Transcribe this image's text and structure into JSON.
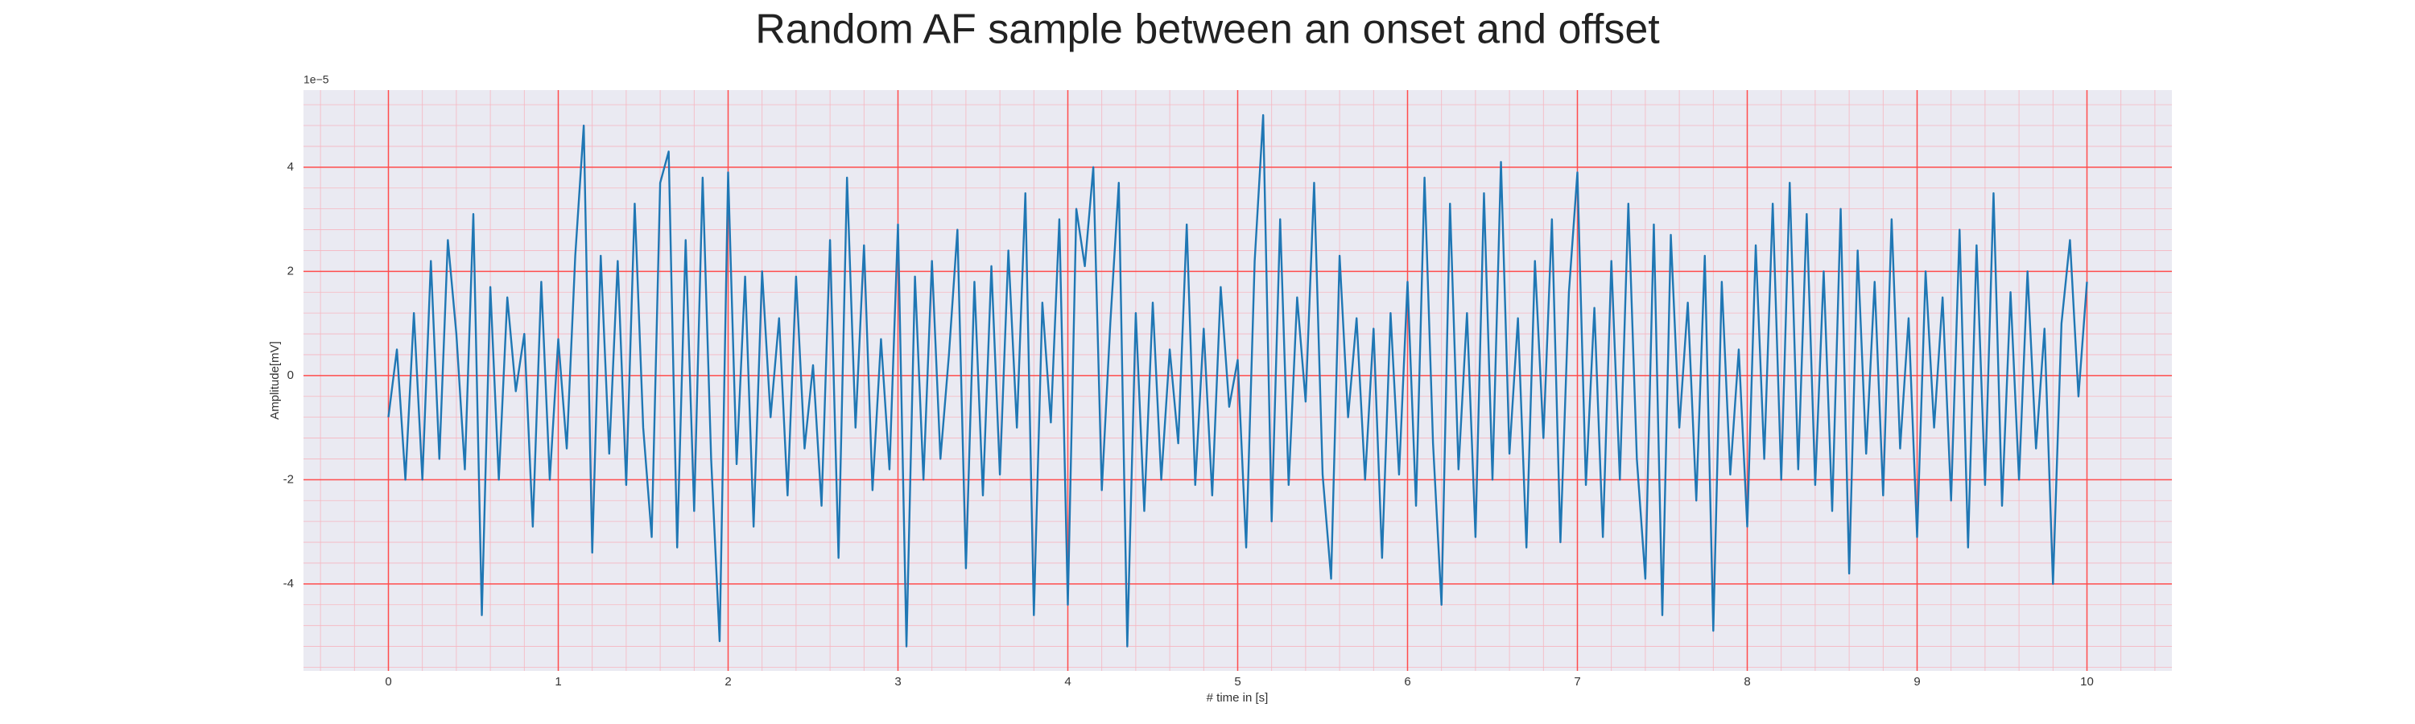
{
  "chart_data": {
    "type": "line",
    "title": "Random AF sample between an onset and offset",
    "xlabel": "# time in [s]",
    "ylabel": "Amplitude[mV]",
    "y_offset_text": "1e−5",
    "x": [
      0,
      0.05,
      0.1,
      0.15,
      0.2,
      0.25,
      0.3,
      0.35,
      0.4,
      0.45,
      0.5,
      0.55,
      0.6,
      0.65,
      0.7,
      0.75,
      0.8,
      0.85,
      0.9,
      0.95,
      1,
      1.05,
      1.1,
      1.15,
      1.2,
      1.25,
      1.3,
      1.35,
      1.4,
      1.45,
      1.5,
      1.55,
      1.6,
      1.65,
      1.7,
      1.75,
      1.8,
      1.85,
      1.9,
      1.95,
      2,
      2.05,
      2.1,
      2.15,
      2.2,
      2.25,
      2.3,
      2.35,
      2.4,
      2.45,
      2.5,
      2.55,
      2.6,
      2.65,
      2.7,
      2.75,
      2.8,
      2.85,
      2.9,
      2.95,
      3,
      3.05,
      3.1,
      3.15,
      3.2,
      3.25,
      3.3,
      3.35,
      3.4,
      3.45,
      3.5,
      3.55,
      3.6,
      3.65,
      3.7,
      3.75,
      3.8,
      3.85,
      3.9,
      3.95,
      4,
      4.05,
      4.1,
      4.15,
      4.2,
      4.25,
      4.3,
      4.35,
      4.4,
      4.45,
      4.5,
      4.55,
      4.6,
      4.65,
      4.7,
      4.75,
      4.8,
      4.85,
      4.9,
      4.95,
      5,
      5.05,
      5.1,
      5.15,
      5.2,
      5.25,
      5.3,
      5.35,
      5.4,
      5.45,
      5.5,
      5.55,
      5.6,
      5.65,
      5.7,
      5.75,
      5.8,
      5.85,
      5.9,
      5.95,
      6,
      6.05,
      6.1,
      6.15,
      6.2,
      6.25,
      6.3,
      6.35,
      6.4,
      6.45,
      6.5,
      6.55,
      6.6,
      6.65,
      6.7,
      6.75,
      6.8,
      6.85,
      6.9,
      6.95,
      7,
      7.05,
      7.1,
      7.15,
      7.2,
      7.25,
      7.3,
      7.35,
      7.4,
      7.45,
      7.5,
      7.55,
      7.6,
      7.65,
      7.7,
      7.75,
      7.8,
      7.85,
      7.9,
      7.95,
      8,
      8.05,
      8.1,
      8.15,
      8.2,
      8.25,
      8.3,
      8.35,
      8.4,
      8.45,
      8.5,
      8.55,
      8.6,
      8.65,
      8.7,
      8.75,
      8.8,
      8.85,
      8.9,
      8.95,
      9,
      9.05,
      9.1,
      9.15,
      9.2,
      9.25,
      9.3,
      9.35,
      9.4,
      9.45,
      9.5,
      9.55,
      9.6,
      9.65,
      9.7,
      9.75,
      9.8,
      9.85,
      9.9,
      9.95,
      10
    ],
    "series": [
      {
        "color": "#1f77b4",
        "values": [
          -0.8,
          0.5,
          -2.0,
          1.2,
          -2.0,
          2.2,
          -1.6,
          2.6,
          0.8,
          -1.8,
          3.1,
          -4.6,
          1.7,
          -2.0,
          1.5,
          -0.3,
          0.8,
          -2.9,
          1.8,
          -2.0,
          0.7,
          -1.4,
          2.3,
          4.8,
          -3.4,
          2.3,
          -1.5,
          2.2,
          -2.1,
          3.3,
          -1.0,
          -3.1,
          3.7,
          4.3,
          -3.3,
          2.6,
          -2.6,
          3.8,
          -1.6,
          -5.1,
          3.9,
          -1.7,
          1.9,
          -2.9,
          2.0,
          -0.8,
          1.1,
          -2.3,
          1.9,
          -1.4,
          0.2,
          -2.5,
          2.6,
          -3.5,
          3.8,
          -1.0,
          2.5,
          -2.2,
          0.7,
          -1.8,
          2.9,
          -5.2,
          1.9,
          -2.0,
          2.2,
          -1.6,
          0.4,
          2.8,
          -3.7,
          1.8,
          -2.3,
          2.1,
          -1.9,
          2.4,
          -1.0,
          3.5,
          -4.6,
          1.4,
          -0.9,
          3.0,
          -4.4,
          3.2,
          2.1,
          4.0,
          -2.2,
          1.0,
          3.7,
          -5.2,
          1.2,
          -2.6,
          1.4,
          -2.0,
          0.5,
          -1.3,
          2.9,
          -2.1,
          0.9,
          -2.3,
          1.7,
          -0.6,
          0.3,
          -3.3,
          2.2,
          5.0,
          -2.8,
          3.0,
          -2.1,
          1.5,
          -0.5,
          3.7,
          -1.9,
          -3.9,
          2.3,
          -0.8,
          1.1,
          -2.0,
          0.9,
          -3.5,
          1.2,
          -1.9,
          1.8,
          -2.5,
          3.8,
          -1.3,
          -4.4,
          3.3,
          -1.8,
          1.2,
          -3.1,
          3.5,
          -2.0,
          4.1,
          -1.5,
          1.1,
          -3.3,
          2.2,
          -1.2,
          3.0,
          -3.2,
          1.6,
          3.9,
          -2.1,
          1.3,
          -3.1,
          2.2,
          -2.0,
          3.3,
          -1.6,
          -3.9,
          2.9,
          -4.6,
          2.7,
          -1.0,
          1.4,
          -2.4,
          2.3,
          -4.9,
          1.8,
          -1.9,
          0.5,
          -2.9,
          2.5,
          -1.6,
          3.3,
          -2.0,
          3.7,
          -1.8,
          3.1,
          -2.1,
          2.0,
          -2.6,
          3.2,
          -3.8,
          2.4,
          -1.5,
          1.8,
          -2.3,
          3.0,
          -1.4,
          1.1,
          -3.1,
          2.0,
          -1.0,
          1.5,
          -2.4,
          2.8,
          -3.3,
          2.5,
          -2.1,
          3.5,
          -2.5,
          1.6,
          -2.0,
          2.0,
          -1.4,
          0.9,
          -4.0,
          1.0,
          2.6,
          -0.4,
          1.8
        ]
      }
    ],
    "xlim": [
      -0.5,
      10.5
    ],
    "ylim": [
      -5.67,
      5.48
    ],
    "xticks": [
      0,
      1,
      2,
      3,
      4,
      5,
      6,
      7,
      8,
      9,
      10
    ],
    "yticks": [
      -4,
      -2,
      0,
      2,
      4
    ],
    "grid": true,
    "minor_grid": true,
    "minor_divisions": 5,
    "background": "#eaeaf2",
    "major_grid_color": "#ff4d4d",
    "minor_grid_color": "#f6b6c0"
  }
}
